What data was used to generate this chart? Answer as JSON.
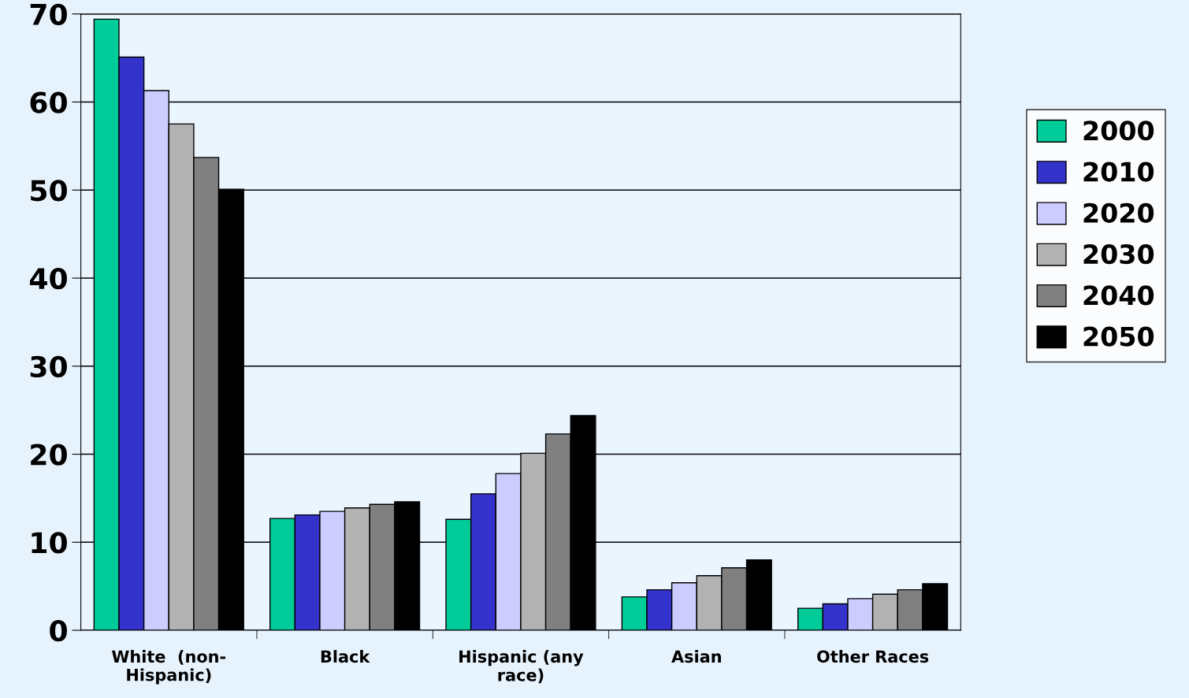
{
  "chart_data": {
    "type": "bar",
    "categories": [
      "White  (non-\nHispanic)",
      "Black",
      "Hispanic (any\nrace)",
      "Asian",
      "Other Races"
    ],
    "series": [
      {
        "name": "2000",
        "color": "#00cc99",
        "values": [
          69.4,
          12.7,
          12.6,
          3.8,
          2.5
        ]
      },
      {
        "name": "2010",
        "color": "#3333cc",
        "values": [
          65.1,
          13.1,
          15.5,
          4.6,
          3.0
        ]
      },
      {
        "name": "2020",
        "color": "#ccccff",
        "values": [
          61.3,
          13.5,
          17.8,
          5.4,
          3.6
        ]
      },
      {
        "name": "2030",
        "color": "#b2b2b2",
        "values": [
          57.5,
          13.9,
          20.1,
          6.2,
          4.1
        ]
      },
      {
        "name": "2040",
        "color": "#808080",
        "values": [
          53.7,
          14.3,
          22.3,
          7.1,
          4.6
        ]
      },
      {
        "name": "2050",
        "color": "#000000",
        "values": [
          50.1,
          14.6,
          24.4,
          8.0,
          5.3
        ]
      }
    ],
    "ylim": [
      0,
      70
    ],
    "yticks": [
      0,
      10,
      20,
      30,
      40,
      50,
      60,
      70
    ],
    "grid": "y",
    "legend": "right"
  }
}
